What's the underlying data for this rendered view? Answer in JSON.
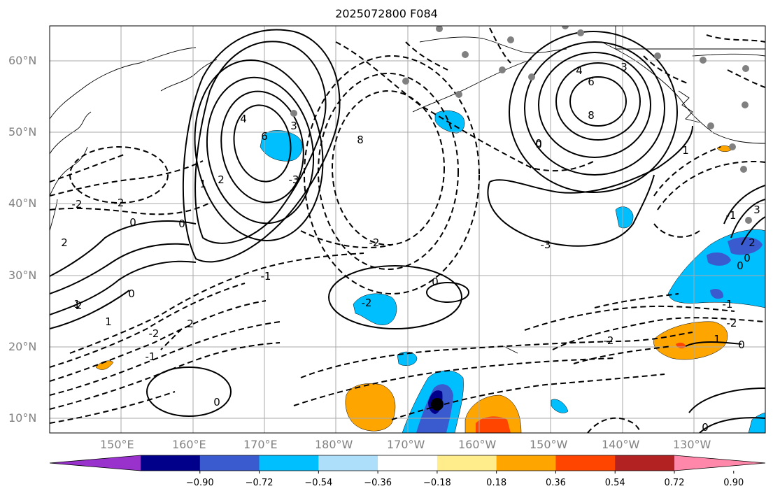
{
  "title": "2025072800 F084",
  "lat_labels": [
    "60°N",
    "50°N",
    "40°N",
    "30°N",
    "20°N",
    "10°N"
  ],
  "lon_labels": [
    "150°E",
    "160°E",
    "170°E",
    "180°W",
    "170°W",
    "160°W",
    "150°W",
    "140°W",
    "130°W"
  ],
  "colorbar": {
    "labels": [
      "−0.90",
      "−0.72",
      "−0.54",
      "−0.36",
      "−0.18",
      "0.18",
      "0.36",
      "0.54",
      "0.72",
      "0.90"
    ],
    "colors": [
      "#9932CC",
      "#00008B",
      "#3A5BD0",
      "#00BFFF",
      "#ADDFFA",
      "#FFFFFF",
      "#FFEC8B",
      "#FFA500",
      "#FF4500",
      "#B22222",
      "#FF88AA"
    ]
  },
  "contour_labels": [
    "2",
    "0",
    "-2",
    "3",
    "4",
    "6",
    "8",
    "-3",
    "-1",
    "1",
    "0",
    "-2",
    "2",
    "-2",
    "0",
    "2",
    "1",
    "-3",
    "0",
    "-1",
    "6",
    "4",
    "3",
    "8",
    "-2",
    "-1",
    "0",
    "1",
    "-2",
    "0",
    "3",
    "2",
    "-2",
    "-1",
    "0",
    "1",
    "0",
    "0",
    "-2",
    "0",
    "1",
    "-2",
    "0"
  ]
}
